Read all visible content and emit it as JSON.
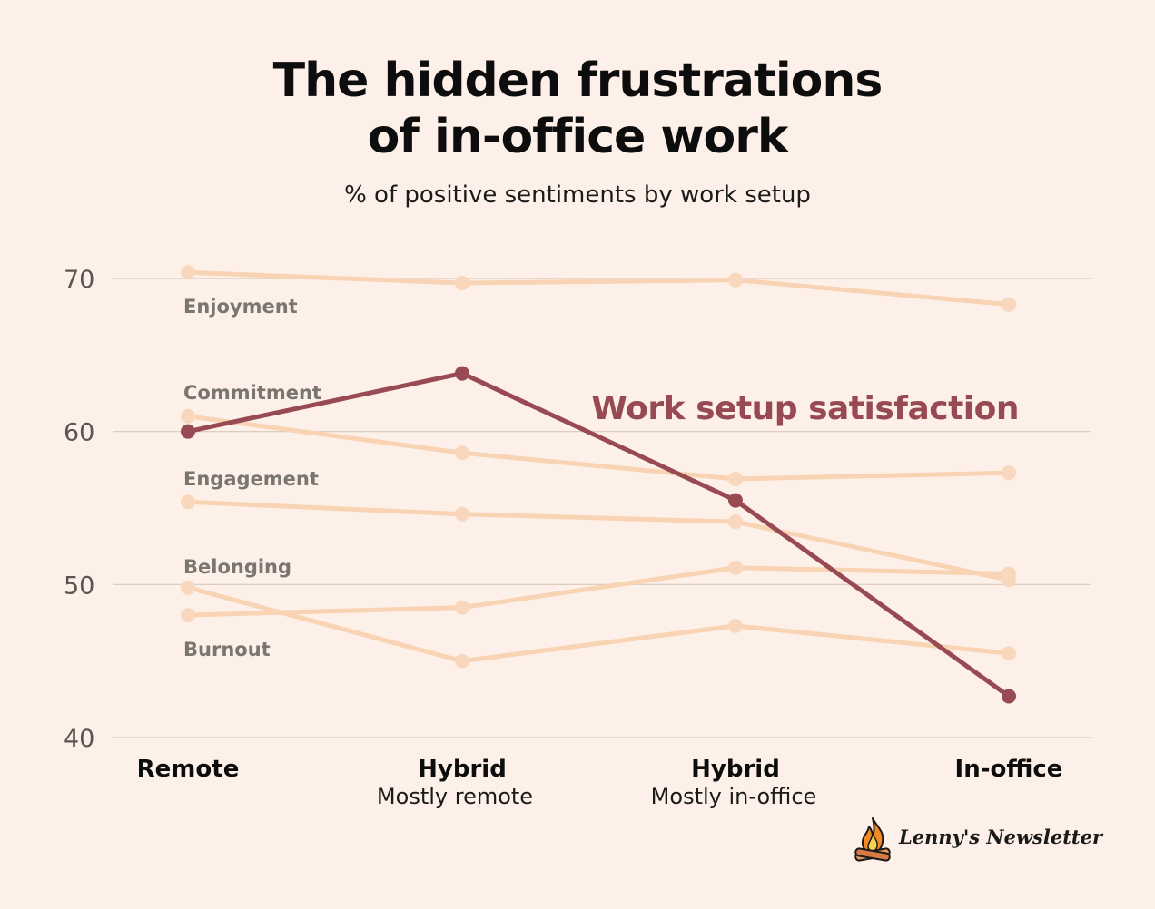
{
  "title_lines": [
    "The hidden frustrations",
    "of in-office work"
  ],
  "subtitle": "% of positive sentiments by work setup",
  "brand": {
    "name": "Lenny's Newsletter",
    "icon": "campfire-icon"
  },
  "colors": {
    "background": "#fdf0e8",
    "grid": "#d9c9bc",
    "secondary_line": "#f8d3b4",
    "secondary_point": "#f9d7bd",
    "highlight": "#984a53",
    "label_gray": "#7b7570",
    "tick_gray": "#5a5550"
  },
  "chart_data": {
    "type": "line",
    "title": "The hidden frustrations of in-office work",
    "subtitle": "% of positive sentiments by work setup",
    "categories": [
      {
        "main": "Remote",
        "sub": ""
      },
      {
        "main": "Hybrid",
        "sub": "Mostly remote"
      },
      {
        "main": "Hybrid",
        "sub": "Mostly in-office"
      },
      {
        "main": "In-office",
        "sub": ""
      }
    ],
    "yticks": [
      70,
      60,
      50,
      40
    ],
    "ylim": [
      40,
      70
    ],
    "grid": true,
    "series": [
      {
        "name": "Enjoyment",
        "values": [
          70.4,
          69.7,
          69.9,
          68.3
        ],
        "highlight": false
      },
      {
        "name": "Commitment",
        "values": [
          61.0,
          58.6,
          56.9,
          57.3
        ],
        "highlight": false
      },
      {
        "name": "Engagement",
        "values": [
          55.4,
          54.6,
          54.1,
          50.3
        ],
        "highlight": false
      },
      {
        "name": "Belonging",
        "values": [
          48.0,
          48.5,
          51.1,
          50.7
        ],
        "highlight": false
      },
      {
        "name": "Burnout",
        "values": [
          49.8,
          45.0,
          47.3,
          45.5
        ],
        "highlight": false
      },
      {
        "name": "Work setup satisfaction",
        "values": [
          60.0,
          63.8,
          55.5,
          42.7
        ],
        "highlight": true
      }
    ]
  }
}
